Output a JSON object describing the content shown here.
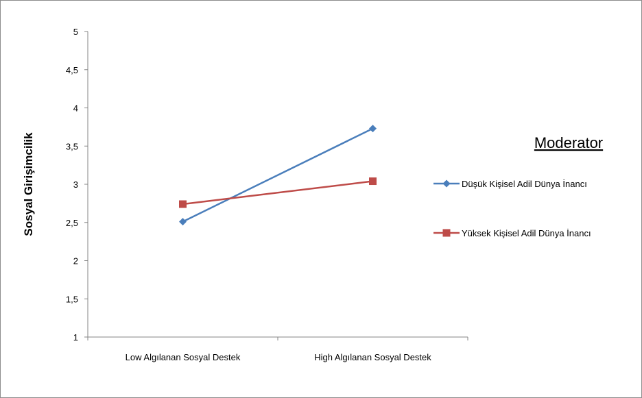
{
  "chart_data": {
    "type": "line",
    "title": "",
    "ylabel": "Sosyal Girişimcilik",
    "xlabel": "",
    "categories": [
      "Low Algılanan Sosyal Destek",
      "High Algılanan Sosyal Destek"
    ],
    "ylim": [
      1,
      5
    ],
    "yticks": [
      1,
      1.5,
      2,
      2.5,
      3,
      3.5,
      4,
      4.5,
      5
    ],
    "ytick_labels": [
      "1",
      "1,5",
      "2",
      "2,5",
      "3",
      "3,5",
      "4",
      "4,5",
      "5"
    ],
    "grid": false,
    "legend_title": "Moderator",
    "legend_position": "right",
    "series": [
      {
        "name": "Düşük Kişisel Adil Dünya İnancı",
        "values": [
          2.51,
          3.73
        ],
        "color": "#4a7ebb",
        "marker": "diamond"
      },
      {
        "name": "Yüksek Kişisel Adil Dünya İnancı",
        "values": [
          2.74,
          3.04
        ],
        "color": "#be4b48",
        "marker": "square"
      }
    ]
  }
}
